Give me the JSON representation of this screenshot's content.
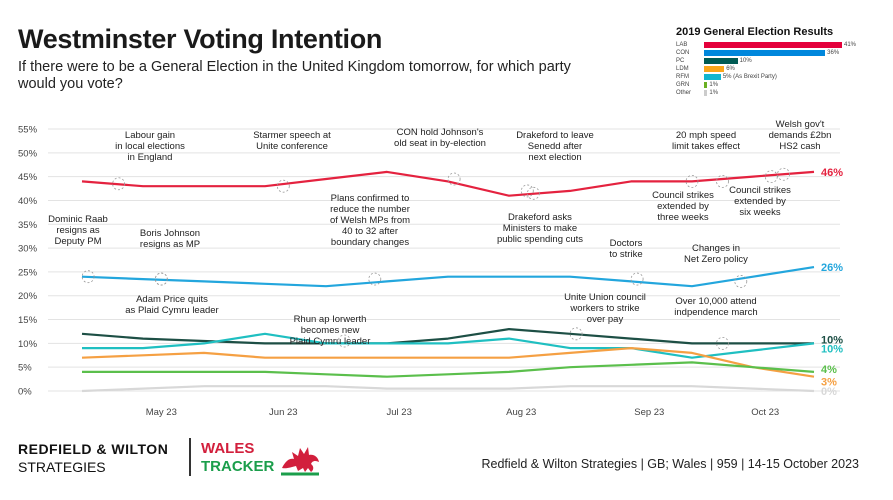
{
  "header": {
    "title": "Westminster Voting Intention",
    "subtitle": "If there were to be a General Election in the United Kingdom tomorrow, for which party would you vote?"
  },
  "inset": {
    "title": "2019 General Election Results",
    "rows": [
      {
        "party": "LAB",
        "value": 41,
        "label": "41%",
        "color": "#e4003b"
      },
      {
        "party": "CON",
        "value": 36,
        "label": "36%",
        "color": "#0087dc"
      },
      {
        "party": "PC",
        "value": 10,
        "label": "10%",
        "color": "#005b54"
      },
      {
        "party": "LDM",
        "value": 6,
        "label": "6%",
        "color": "#faa61a"
      },
      {
        "party": "RFM",
        "value": 5,
        "label": "5% (As Brexit Party)",
        "color": "#12b6cf"
      },
      {
        "party": "GRN",
        "value": 1,
        "label": "1%",
        "color": "#6ab023"
      },
      {
        "party": "Other",
        "value": 1,
        "label": "1%",
        "color": "#cccccc"
      }
    ]
  },
  "chart_data": {
    "type": "line",
    "ylim": [
      0,
      55
    ],
    "yticks": [
      "0%",
      "5%",
      "10%",
      "15%",
      "20%",
      "25%",
      "30%",
      "35%",
      "40%",
      "45%",
      "50%",
      "55%"
    ],
    "xticks": [
      "May 23",
      "Jun 23",
      "Jul 23",
      "Aug 23",
      "Sep 23",
      "Oct 23"
    ],
    "x": [
      0,
      1,
      2,
      3,
      4,
      5,
      6,
      7,
      8,
      9,
      10,
      11,
      12
    ],
    "grid": true,
    "series": [
      {
        "name": "LAB",
        "color": "#e4223f",
        "end_label": "46%",
        "values": [
          44,
          43,
          43,
          43,
          44.5,
          46,
          44,
          41,
          42,
          44,
          44,
          45,
          46
        ]
      },
      {
        "name": "CON",
        "color": "#23a6dd",
        "end_label": "26%",
        "values": [
          24,
          23.5,
          23,
          22.5,
          22,
          23,
          24,
          24,
          24,
          23,
          22,
          24,
          26
        ]
      },
      {
        "name": "PC",
        "color": "#1d4f45",
        "end_label": "10%",
        "values": [
          12,
          11,
          10.5,
          10,
          10,
          10,
          11,
          13,
          12,
          11,
          10,
          10,
          10
        ]
      },
      {
        "name": "RFM",
        "color": "#1fbfc1",
        "end_label": "10%",
        "values": [
          9,
          9,
          10,
          12,
          10,
          10,
          10,
          11,
          9,
          9,
          7,
          8.5,
          10
        ]
      },
      {
        "name": "LDM",
        "color": "#f5a043",
        "end_label": "3%",
        "values": [
          7,
          7.5,
          8,
          7,
          7,
          7,
          7,
          7,
          8,
          9,
          8,
          5,
          3
        ]
      },
      {
        "name": "GRN",
        "color": "#5bbf4c",
        "end_label": "4%",
        "values": [
          4,
          4,
          4,
          4,
          3.5,
          3,
          3.5,
          4,
          5,
          5.5,
          6,
          5,
          4
        ]
      },
      {
        "name": "Other",
        "color": "#d8d8d8",
        "end_label": "0%",
        "values": [
          0,
          0.5,
          1,
          1,
          1,
          0.5,
          0.5,
          0.5,
          1,
          1,
          1,
          0.5,
          0
        ]
      }
    ],
    "annotations": [
      {
        "text": [
          "Labour gain",
          "in local elections",
          "in England"
        ],
        "anchor": [
          0.6,
          43.5
        ]
      },
      {
        "text": [
          "Starmer speech at",
          "Unite conference"
        ],
        "anchor": [
          3.3,
          43
        ]
      },
      {
        "text": [
          "CON hold Johnson's",
          "old seat in by-election"
        ],
        "anchor": [
          6.1,
          44.5
        ]
      },
      {
        "text": [
          "Drakeford to leave",
          "Senedd after",
          "next election"
        ],
        "anchor": [
          7.4,
          41.5
        ]
      },
      {
        "text": [
          "20 mph speed",
          "limit takes effect"
        ],
        "anchor": [
          10,
          44
        ]
      },
      {
        "text": [
          "Welsh gov't",
          "demands £2bn",
          "HS2 cash"
        ],
        "anchor": [
          11.5,
          45.5
        ]
      },
      {
        "text": [
          "Plans confirmed to",
          "reduce the number",
          "of Welsh MPs from",
          "40 to 32 after",
          "boundary changes"
        ],
        "anchor": [
          4.8,
          23.5
        ]
      },
      {
        "text": [
          "Drakeford asks",
          "Ministers to make",
          "public spending cuts"
        ],
        "anchor": [
          7.3,
          42
        ]
      },
      {
        "text": [
          "Council strikes",
          "extended by",
          "three weeks"
        ],
        "anchor": [
          10.5,
          44
        ]
      },
      {
        "text": [
          "Council strikes",
          "extended by",
          "six weeks"
        ],
        "anchor": [
          11.3,
          45
        ]
      },
      {
        "text": [
          "Dominic Raab",
          "resigns as",
          "Deputy PM"
        ],
        "anchor": [
          0.1,
          24
        ]
      },
      {
        "text": [
          "Boris Johnson",
          "resigns as MP"
        ],
        "anchor": [
          1.3,
          23.5
        ]
      },
      {
        "text": [
          "Adam Price quits",
          "as Plaid Cymru leader"
        ],
        "anchor": [
          1.3,
          23.5
        ]
      },
      {
        "text": [
          "Rhun ap Iorwerth",
          "becomes new",
          "Plaid Cymru leader"
        ],
        "anchor": [
          4.3,
          10.5
        ]
      },
      {
        "text": [
          "Doctors",
          "to strike"
        ],
        "anchor": [
          9.1,
          23.5
        ]
      },
      {
        "text": [
          "Changes in",
          "Net Zero policy"
        ],
        "anchor": [
          10.8,
          23
        ]
      },
      {
        "text": [
          "Unite Union council",
          "workers to strike",
          "over pay"
        ],
        "anchor": [
          8.1,
          12
        ]
      },
      {
        "text": [
          "Over 10,000 attend",
          "indpendence march"
        ],
        "anchor": [
          10.5,
          10
        ]
      }
    ]
  },
  "footer": {
    "brand_line1": "REDFIELD & WILTON",
    "brand_line2": "STRATEGIES",
    "tracker_line1": "WALES",
    "tracker_line2": "TRACKER",
    "source": "Redfield & Wilton Strategies | GB; Wales | 959 | 14-15 October 2023"
  }
}
